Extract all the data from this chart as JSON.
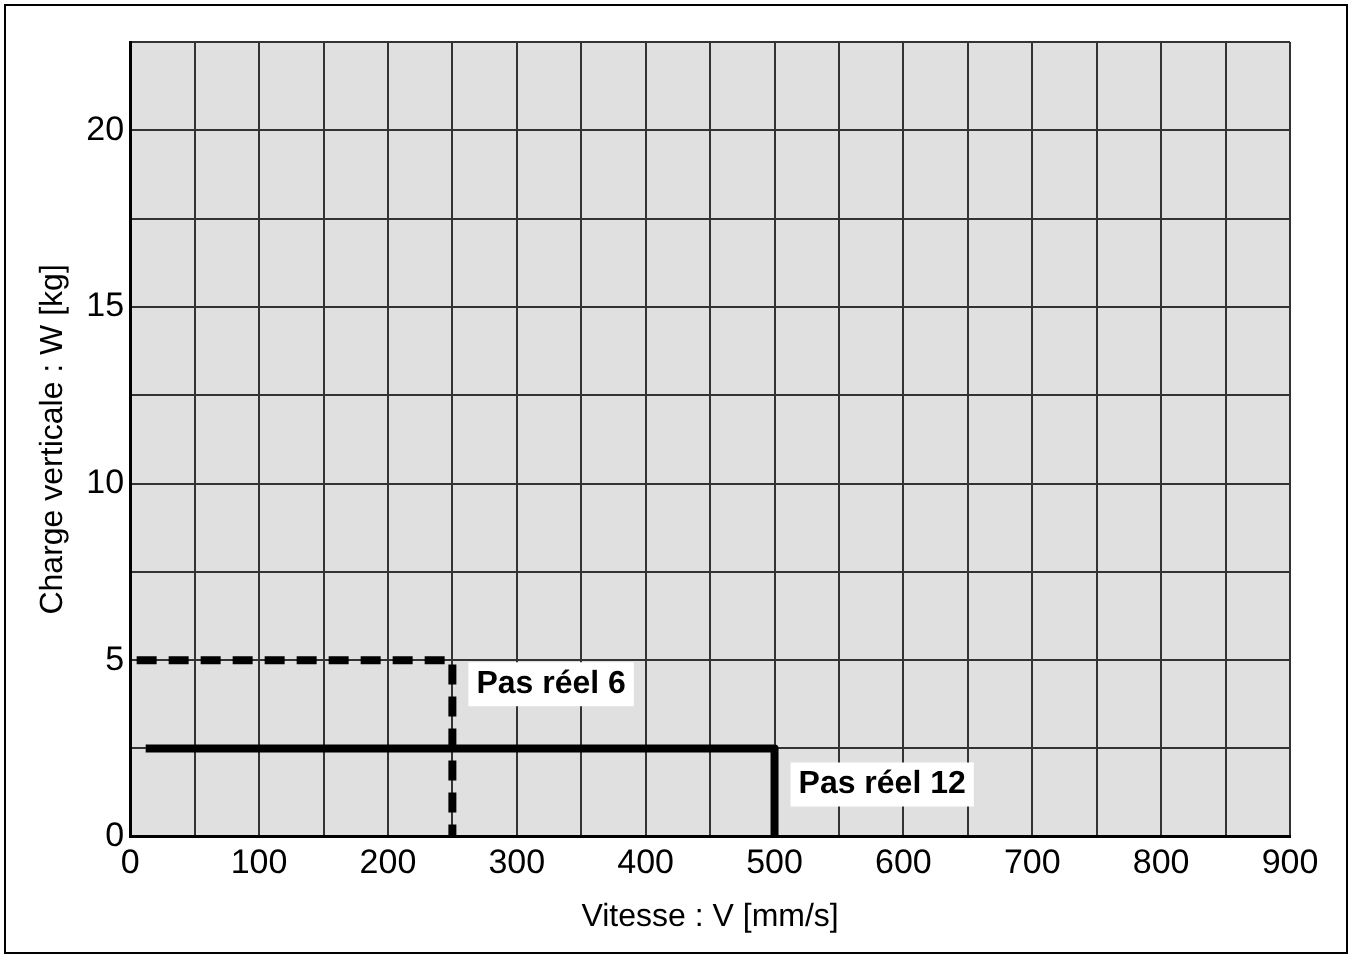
{
  "chart_data": {
    "type": "line",
    "xlabel": "Vitesse : V [mm/s]",
    "ylabel": "Charge verticale : W [kg]",
    "xlim": [
      0,
      900
    ],
    "ylim": [
      0,
      22.5
    ],
    "xticks": [
      0,
      {
        "value": 50,
        "label": null
      },
      100,
      {
        "value": 150,
        "label": null
      },
      200,
      {
        "value": 250,
        "label": null
      },
      300,
      {
        "value": 350,
        "label": null
      },
      400,
      {
        "value": 450,
        "label": null
      },
      500,
      {
        "value": 550,
        "label": null
      },
      600,
      {
        "value": 650,
        "label": null
      },
      700,
      {
        "value": 750,
        "label": null
      },
      800,
      {
        "value": 850,
        "label": null
      },
      900
    ],
    "yticks": [
      0,
      {
        "value": 2.5,
        "label": null
      },
      5,
      {
        "value": 7.5,
        "label": null
      },
      10,
      {
        "value": 12.5,
        "label": null
      },
      15,
      {
        "value": 17.5,
        "label": null
      },
      20,
      {
        "value": 22.5,
        "label": null
      }
    ],
    "grid": true,
    "legend": false,
    "marker": "none",
    "series": [
      {
        "name": "Pas réel 6",
        "color": "#000000",
        "line_style": "dashed",
        "x": [
          5,
          250,
          250
        ],
        "values": [
          5,
          5,
          0
        ]
      },
      {
        "name": "Pas réel 12",
        "color": "#000000",
        "line_style": "solid",
        "x": [
          12,
          500,
          500
        ],
        "values": [
          2.5,
          2.5,
          0
        ]
      }
    ]
  }
}
